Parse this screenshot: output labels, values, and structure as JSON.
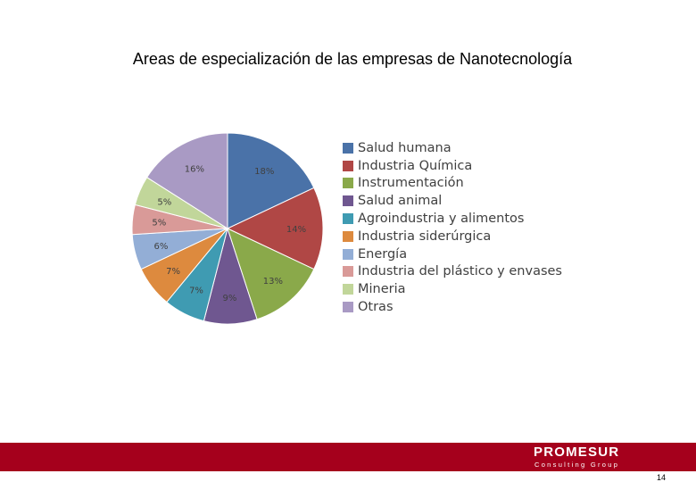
{
  "chart_data": {
    "type": "pie",
    "title": "Areas de especialización de las empresas de Nanotecnología",
    "slices": [
      {
        "label": "Salud humana",
        "value": 18,
        "value_label": "18%",
        "color": "#4a72a8"
      },
      {
        "label": "Industria Química",
        "value": 14,
        "value_label": "14%",
        "color": "#b04745"
      },
      {
        "label": "Instrumentación",
        "value": 13,
        "value_label": "13%",
        "color": "#8aa94a"
      },
      {
        "label": "Salud animal",
        "value": 9,
        "value_label": "9%",
        "color": "#6f5790"
      },
      {
        "label": "Agroindustria y alimentos",
        "value": 7,
        "value_label": "7%",
        "color": "#3f9bb2"
      },
      {
        "label": "Industria siderúrgica",
        "value": 7,
        "value_label": "7%",
        "color": "#dd8a3e"
      },
      {
        "label": "Energía",
        "value": 6,
        "value_label": "6%",
        "color": "#93aed6"
      },
      {
        "label": "Industria del plástico y envases",
        "value": 5,
        "value_label": "5%",
        "color": "#d99a98"
      },
      {
        "label": "Mineria",
        "value": 5,
        "value_label": "5%",
        "color": "#c1d69a"
      },
      {
        "label": "Otras",
        "value": 16,
        "value_label": "16%",
        "color": "#a99ac4"
      }
    ],
    "start_angle_deg": 0,
    "direction": "clockwise",
    "legend_position": "right"
  },
  "footer": {
    "logo_text": "PROMESUR",
    "logo_subtext": "Consulting Group",
    "bar_color": "#a5001c"
  },
  "page_number": "14"
}
